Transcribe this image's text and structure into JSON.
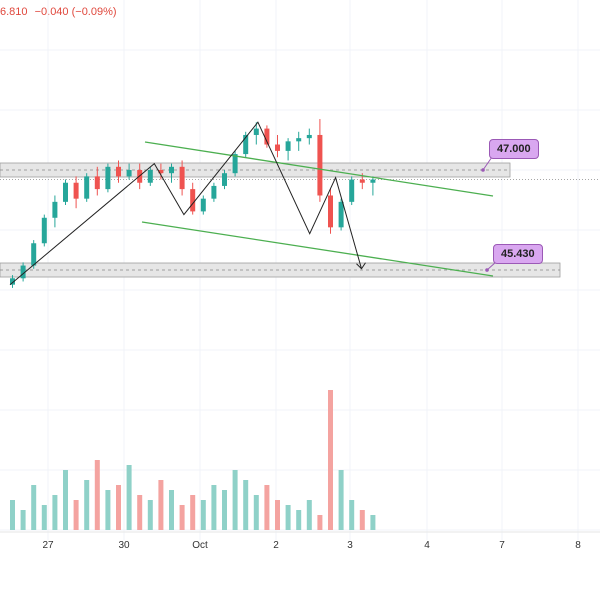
{
  "header": {
    "price_fragment": "6.810",
    "change": "−0.040 (−0.09%)",
    "color": "#e0483d"
  },
  "colors": {
    "up": "#26a69a",
    "down": "#ef5350",
    "vol_up": "#8fd1c8",
    "vol_down": "#f4a3a0",
    "channel": "#4caf50",
    "zigzag": "#222222",
    "zone_fill": "#e6e6e6",
    "zone_border": "#9e9e9e",
    "callout": "#d9a7f0"
  },
  "levels": {
    "upper_label": "47.000",
    "lower_label": "45.430"
  },
  "chart_data": {
    "type": "candlestick",
    "x_tick_labels": [
      "27",
      "30",
      "Oct",
      "2",
      "3",
      "4",
      "7",
      "8"
    ],
    "price_levels": [
      47.0,
      45.43
    ],
    "zigzag_points": [
      {
        "t": 0.0,
        "price": 45.2
      },
      {
        "t": 1.95,
        "price": 47.1
      },
      {
        "t": 2.35,
        "price": 46.3
      },
      {
        "t": 3.35,
        "price": 47.75
      },
      {
        "t": 4.05,
        "price": 46.0
      },
      {
        "t": 4.4,
        "price": 46.88
      },
      {
        "t": 4.75,
        "price": 45.45
      }
    ],
    "candles": [
      {
        "o": 45.2,
        "h": 45.35,
        "l": 45.15,
        "c": 45.3
      },
      {
        "o": 45.3,
        "h": 45.55,
        "l": 45.25,
        "c": 45.5
      },
      {
        "o": 45.5,
        "h": 45.9,
        "l": 45.45,
        "c": 45.85
      },
      {
        "o": 45.85,
        "h": 46.3,
        "l": 45.8,
        "c": 46.25
      },
      {
        "o": 46.25,
        "h": 46.6,
        "l": 46.1,
        "c": 46.5
      },
      {
        "o": 46.5,
        "h": 46.85,
        "l": 46.45,
        "c": 46.8
      },
      {
        "o": 46.8,
        "h": 46.9,
        "l": 46.4,
        "c": 46.55
      },
      {
        "o": 46.55,
        "h": 46.95,
        "l": 46.5,
        "c": 46.9
      },
      {
        "o": 46.9,
        "h": 47.05,
        "l": 46.6,
        "c": 46.7
      },
      {
        "o": 46.7,
        "h": 47.1,
        "l": 46.65,
        "c": 47.05
      },
      {
        "o": 47.05,
        "h": 47.15,
        "l": 46.8,
        "c": 46.9
      },
      {
        "o": 46.9,
        "h": 47.1,
        "l": 46.85,
        "c": 47.0
      },
      {
        "o": 47.0,
        "h": 47.1,
        "l": 46.7,
        "c": 46.8
      },
      {
        "o": 46.8,
        "h": 47.05,
        "l": 46.75,
        "c": 47.0
      },
      {
        "o": 47.0,
        "h": 47.1,
        "l": 46.85,
        "c": 46.95
      },
      {
        "o": 46.95,
        "h": 47.1,
        "l": 46.8,
        "c": 47.05
      },
      {
        "o": 47.05,
        "h": 47.15,
        "l": 46.6,
        "c": 46.7
      },
      {
        "o": 46.7,
        "h": 46.8,
        "l": 46.3,
        "c": 46.35
      },
      {
        "o": 46.35,
        "h": 46.6,
        "l": 46.3,
        "c": 46.55
      },
      {
        "o": 46.55,
        "h": 46.8,
        "l": 46.5,
        "c": 46.75
      },
      {
        "o": 46.75,
        "h": 47.0,
        "l": 46.7,
        "c": 46.95
      },
      {
        "o": 46.95,
        "h": 47.3,
        "l": 46.9,
        "c": 47.25
      },
      {
        "o": 47.25,
        "h": 47.6,
        "l": 47.2,
        "c": 47.55
      },
      {
        "o": 47.55,
        "h": 47.75,
        "l": 47.4,
        "c": 47.65
      },
      {
        "o": 47.65,
        "h": 47.7,
        "l": 47.35,
        "c": 47.4
      },
      {
        "o": 47.4,
        "h": 47.55,
        "l": 47.2,
        "c": 47.3
      },
      {
        "o": 47.3,
        "h": 47.5,
        "l": 47.15,
        "c": 47.45
      },
      {
        "o": 47.45,
        "h": 47.6,
        "l": 47.3,
        "c": 47.5
      },
      {
        "o": 47.5,
        "h": 47.65,
        "l": 47.4,
        "c": 47.55
      },
      {
        "o": 47.55,
        "h": 47.8,
        "l": 46.5,
        "c": 46.6
      },
      {
        "o": 46.6,
        "h": 46.7,
        "l": 46.0,
        "c": 46.1
      },
      {
        "o": 46.1,
        "h": 46.55,
        "l": 46.05,
        "c": 46.5
      },
      {
        "o": 46.5,
        "h": 46.9,
        "l": 46.45,
        "c": 46.85
      },
      {
        "o": 46.85,
        "h": 46.95,
        "l": 46.7,
        "c": 46.8
      },
      {
        "o": 46.8,
        "h": 46.9,
        "l": 46.6,
        "c": 46.85
      }
    ],
    "volume": [
      6,
      4,
      9,
      5,
      7,
      12,
      6,
      10,
      14,
      8,
      9,
      13,
      7,
      6,
      10,
      8,
      5,
      7,
      6,
      9,
      8,
      12,
      10,
      7,
      9,
      6,
      5,
      4,
      6,
      3,
      28,
      12,
      6,
      4,
      3
    ]
  }
}
